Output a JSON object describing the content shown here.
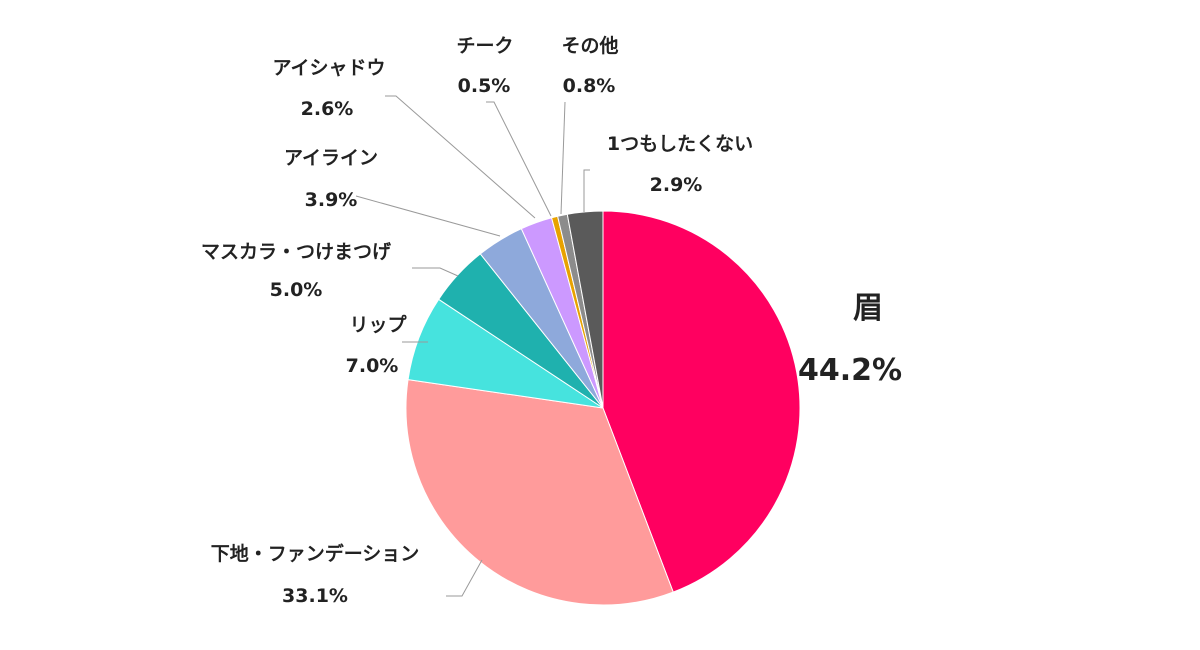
{
  "chart_data": {
    "type": "pie",
    "start": "12 o'clock",
    "direction": "clockwise",
    "slices": [
      {
        "label": "眉",
        "value": 44.2,
        "value_label": "44.2%",
        "color": "#FF0060"
      },
      {
        "label": "下地・ファンデーション",
        "value": 33.1,
        "value_label": "33.1%",
        "color": "#FF9B9B"
      },
      {
        "label": "リップ",
        "value": 7.0,
        "value_label": "7.0%",
        "color": "#46E3DE"
      },
      {
        "label": "マスカラ・つけまつげ",
        "value": 5.0,
        "value_label": "5.0%",
        "color": "#1FB1AE"
      },
      {
        "label": "アイライン",
        "value": 3.9,
        "value_label": "3.9%",
        "color": "#8EA9DB"
      },
      {
        "label": "アイシャドウ",
        "value": 2.6,
        "value_label": "2.6%",
        "color": "#CC99FF"
      },
      {
        "label": "チーク",
        "value": 0.5,
        "value_label": "0.5%",
        "color": "#E8A200"
      },
      {
        "label": "その他",
        "value": 0.8,
        "value_label": "0.8%",
        "color": "#8C8C8C"
      },
      {
        "label": "1つもしたくない",
        "value": 2.9,
        "value_label": "2.9%",
        "color": "#5A5A5A"
      }
    ]
  }
}
